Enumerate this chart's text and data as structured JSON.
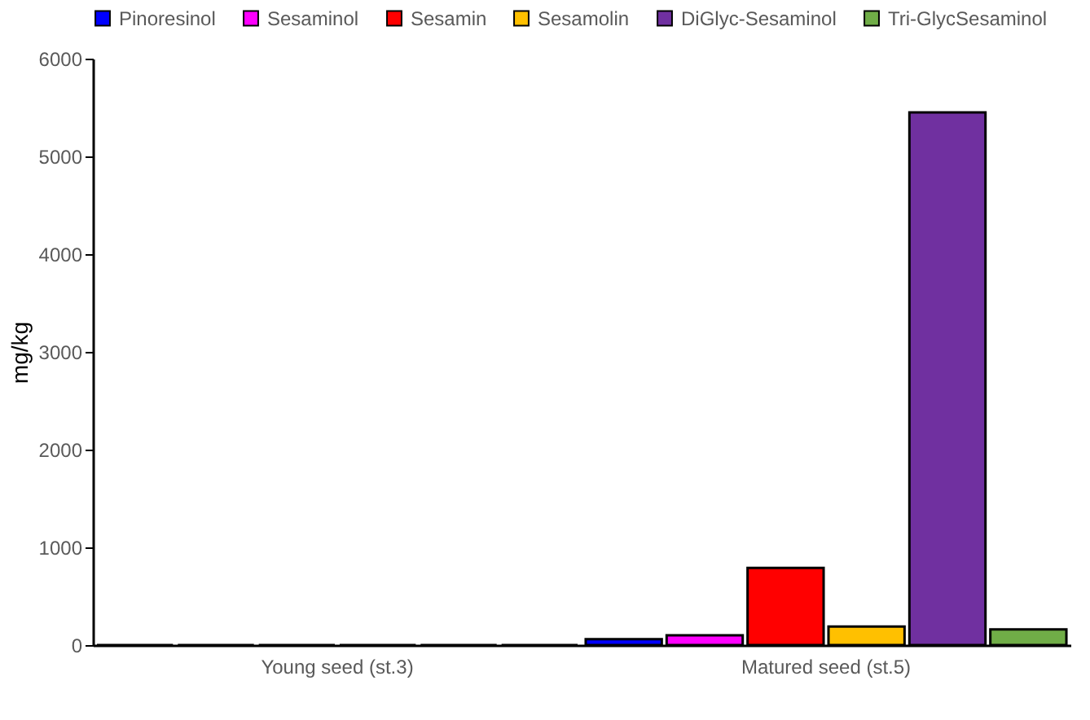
{
  "chart_data": {
    "type": "bar",
    "ylabel": "mg/kg",
    "categories": [
      "Young seed (st.3)",
      "Matured seed (st.5)"
    ],
    "series": [
      {
        "name": "Pinoresinol",
        "color": "#0000ff",
        "values": [
          0,
          60
        ]
      },
      {
        "name": "Sesaminol",
        "color": "#ff00ff",
        "values": [
          0,
          100
        ]
      },
      {
        "name": "Sesamin",
        "color": "#ff0000",
        "values": [
          0,
          790
        ]
      },
      {
        "name": "Sesamolin",
        "color": "#ffc000",
        "values": [
          0,
          190
        ]
      },
      {
        "name": "DiGlyc-Sesaminol",
        "color": "#7030a0",
        "values": [
          0,
          5450
        ]
      },
      {
        "name": "Tri-GlycSesaminol",
        "color": "#70ad47",
        "values": [
          0,
          160
        ]
      }
    ],
    "ylim": [
      0,
      6000
    ],
    "yticks": [
      0,
      1000,
      2000,
      3000,
      4000,
      5000,
      6000
    ],
    "grid": false,
    "legend": "top"
  }
}
